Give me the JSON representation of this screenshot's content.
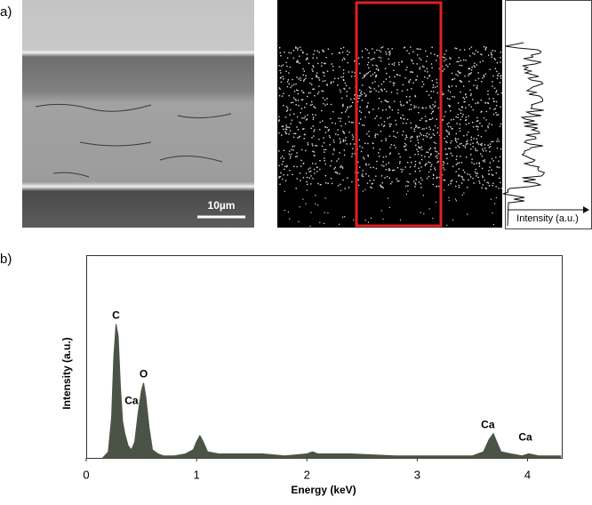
{
  "panel_a": {
    "label": "a)",
    "scale_bar": "10µm",
    "profile_axis_label": "Intensity (a.u.)"
  },
  "chart_data": {
    "type": "area",
    "panel_label": "b)",
    "x_label": "Energy (keV)",
    "y_label": "Intensity (a.u.)",
    "x": [
      0.15,
      0.2,
      0.23,
      0.25,
      0.27,
      0.29,
      0.31,
      0.33,
      0.35,
      0.38,
      0.41,
      0.44,
      0.47,
      0.5,
      0.52,
      0.54,
      0.57,
      0.6,
      0.65,
      0.7,
      0.8,
      0.9,
      0.97,
      1.0,
      1.03,
      1.06,
      1.1,
      1.2,
      1.4,
      1.6,
      1.8,
      2.0,
      2.05,
      2.1,
      2.4,
      2.8,
      3.2,
      3.5,
      3.6,
      3.65,
      3.69,
      3.72,
      3.76,
      3.85,
      3.95,
      4.01,
      4.1,
      4.3
    ],
    "values": [
      0,
      3,
      20,
      50,
      66,
      60,
      35,
      18,
      12,
      6,
      4,
      8,
      22,
      33,
      37,
      30,
      15,
      4,
      2,
      1,
      1,
      2,
      4,
      8,
      11,
      8,
      3,
      2,
      2,
      2,
      1,
      2,
      3,
      2,
      2,
      1,
      1,
      1,
      3,
      9,
      12,
      8,
      3,
      2,
      1,
      2,
      1,
      1
    ],
    "color": "#4b5347",
    "xlim": [
      0,
      4.31
    ],
    "xticks": [
      0,
      1,
      2,
      3,
      4
    ],
    "ylim": [
      0,
      100
    ],
    "annotations": [
      {
        "text": "C",
        "x": 0.27,
        "y": 70
      },
      {
        "text": "Ca",
        "x": 0.41,
        "y": 28
      },
      {
        "text": "O",
        "x": 0.52,
        "y": 41
      },
      {
        "text": "Ca",
        "x": 3.64,
        "y": 16
      },
      {
        "text": "Ca",
        "x": 3.98,
        "y": 10
      }
    ]
  }
}
